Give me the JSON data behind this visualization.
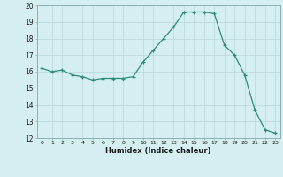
{
  "x": [
    0,
    1,
    2,
    3,
    4,
    5,
    6,
    7,
    8,
    9,
    10,
    11,
    12,
    13,
    14,
    15,
    16,
    17,
    18,
    19,
    20,
    21,
    22,
    23
  ],
  "y": [
    16.2,
    16.0,
    16.1,
    15.8,
    15.7,
    15.5,
    15.6,
    15.6,
    15.6,
    15.7,
    16.6,
    17.3,
    18.0,
    18.7,
    19.6,
    19.6,
    19.6,
    19.5,
    17.6,
    17.0,
    15.8,
    13.7,
    12.5,
    12.3
  ],
  "title": "",
  "xlabel": "Humidex (Indice chaleur)",
  "ylabel": "",
  "ylim": [
    12,
    20
  ],
  "xlim": [
    -0.5,
    23.5
  ],
  "yticks": [
    12,
    13,
    14,
    15,
    16,
    17,
    18,
    19,
    20
  ],
  "xticks": [
    0,
    1,
    2,
    3,
    4,
    5,
    6,
    7,
    8,
    9,
    10,
    11,
    12,
    13,
    14,
    15,
    16,
    17,
    18,
    19,
    20,
    21,
    22,
    23
  ],
  "line_color": "#2e8b7a",
  "marker_color": "#2e8b7a",
  "bg_color": "#d4eef2",
  "grid_color": "#b8d8dc",
  "axes_color": "#8ab0b5"
}
